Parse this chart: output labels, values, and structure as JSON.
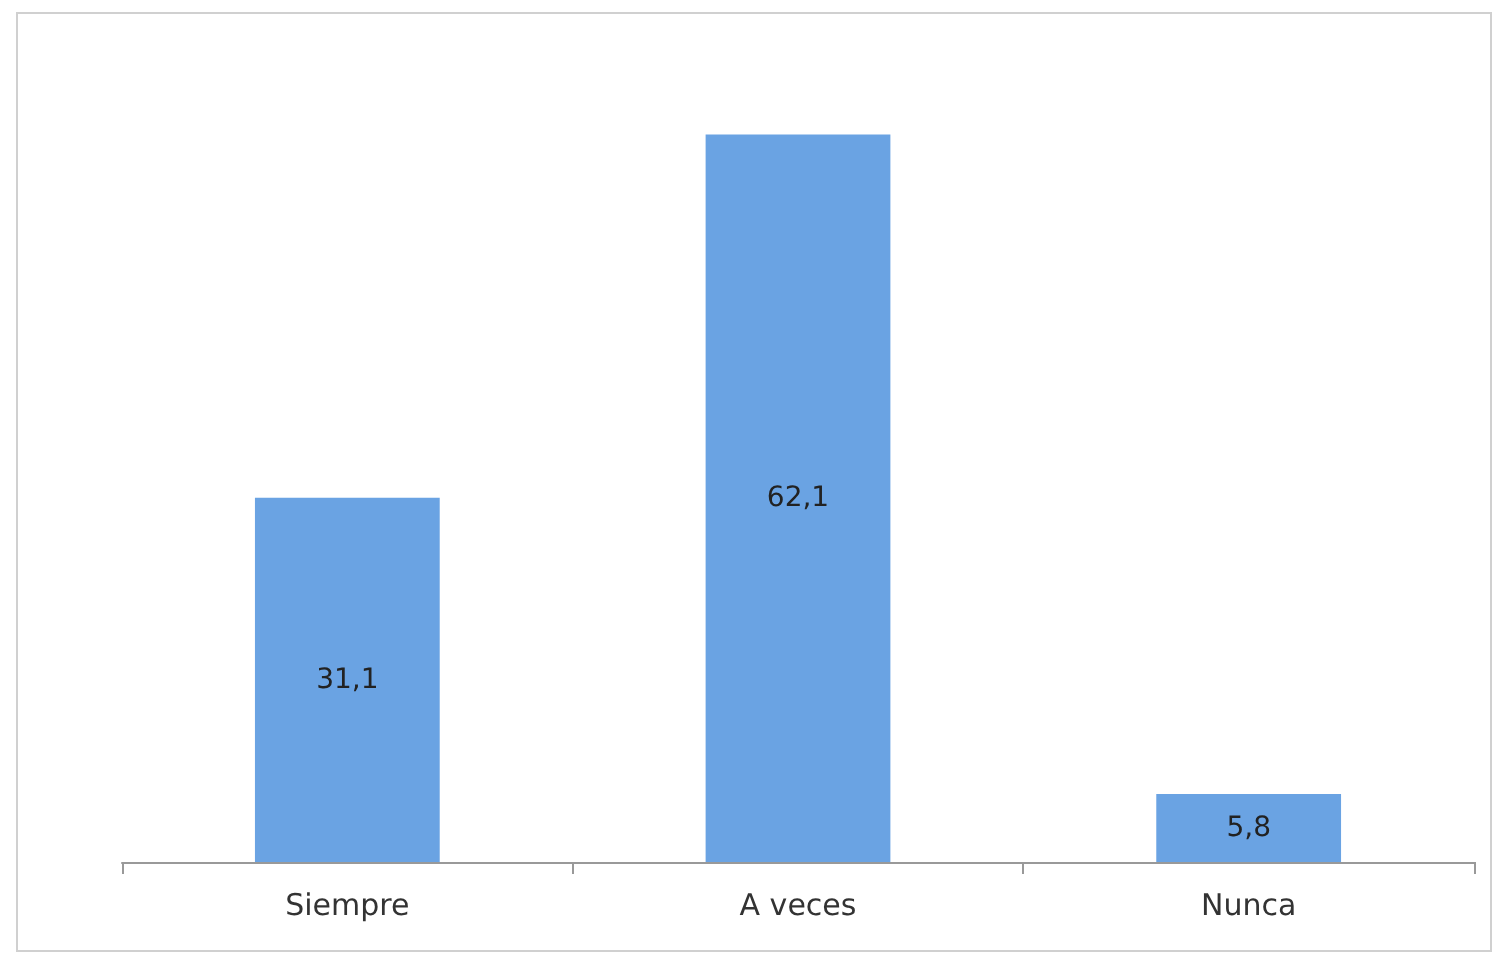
{
  "chart_data": {
    "type": "bar",
    "categories": [
      "Siempre",
      "A veces",
      "Nunca"
    ],
    "values": [
      31.1,
      62.1,
      5.8
    ],
    "value_labels": [
      "31,1",
      "62,1",
      "5,8"
    ],
    "color": "#6aa3e3"
  }
}
